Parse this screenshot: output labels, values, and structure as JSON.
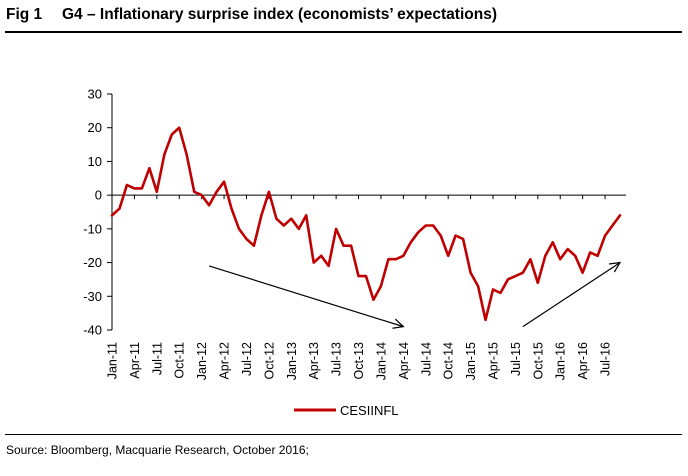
{
  "header": {
    "fig_label": "Fig 1",
    "title": "G4 – Inflationary surprise index (economists’ expectations)"
  },
  "source": "Source: Bloomberg, Macquarie Research, October  2016;",
  "chart_data": {
    "type": "line",
    "title": "G4 – Inflationary surprise index (economists’ expectations)",
    "xlabel": "",
    "ylabel": "",
    "ylim": [
      -40,
      30
    ],
    "yticks": [
      30,
      20,
      10,
      0,
      -10,
      -20,
      -30,
      -40
    ],
    "grid": false,
    "legend_position": "bottom-center",
    "x_tick_labels": [
      "Jan-11",
      "Apr-11",
      "Jul-11",
      "Oct-11",
      "Jan-12",
      "Apr-12",
      "Jul-12",
      "Oct-12",
      "Jan-13",
      "Apr-13",
      "Jul-13",
      "Oct-13",
      "Jan-14",
      "Apr-14",
      "Jul-14",
      "Oct-14",
      "Jan-15",
      "Apr-15",
      "Jul-15",
      "Oct-15",
      "Jan-16",
      "Apr-16",
      "Jul-16"
    ],
    "series_color": "#c00000",
    "arrow_color": "#000000",
    "series": [
      {
        "name": "CESIINFL",
        "x": [
          "Jan-11",
          "Feb-11",
          "Mar-11",
          "Apr-11",
          "May-11",
          "Jun-11",
          "Jul-11",
          "Aug-11",
          "Sep-11",
          "Oct-11",
          "Nov-11",
          "Dec-11",
          "Jan-12",
          "Feb-12",
          "Mar-12",
          "Apr-12",
          "May-12",
          "Jun-12",
          "Jul-12",
          "Aug-12",
          "Sep-12",
          "Oct-12",
          "Nov-12",
          "Dec-12",
          "Jan-13",
          "Feb-13",
          "Mar-13",
          "Apr-13",
          "May-13",
          "Jun-13",
          "Jul-13",
          "Aug-13",
          "Sep-13",
          "Oct-13",
          "Nov-13",
          "Dec-13",
          "Jan-14",
          "Feb-14",
          "Mar-14",
          "Apr-14",
          "May-14",
          "Jun-14",
          "Jul-14",
          "Aug-14",
          "Sep-14",
          "Oct-14",
          "Nov-14",
          "Dec-14",
          "Jan-15",
          "Feb-15",
          "Mar-15",
          "Apr-15",
          "May-15",
          "Jun-15",
          "Jul-15",
          "Aug-15",
          "Sep-15",
          "Oct-15",
          "Nov-15",
          "Dec-15",
          "Jan-16",
          "Feb-16",
          "Mar-16",
          "Apr-16",
          "May-16",
          "Jun-16",
          "Jul-16",
          "Aug-16",
          "Sep-16"
        ],
        "values": [
          -6,
          -4,
          3,
          2,
          2,
          8,
          1,
          12,
          18,
          20,
          12,
          1,
          0,
          -3,
          1,
          4,
          -4,
          -10,
          -13,
          -15,
          -6,
          1,
          -7,
          -9,
          -7,
          -10,
          -6,
          -20,
          -18,
          -21,
          -10,
          -15,
          -15,
          -24,
          -24,
          -31,
          -27,
          -19,
          -19,
          -18,
          -14,
          -11,
          -9,
          -9,
          -12,
          -18,
          -12,
          -13,
          -23,
          -27,
          -37,
          -28,
          -29,
          -25,
          -24,
          -23,
          -19,
          -26,
          -18,
          -14,
          -19,
          -16,
          -18,
          -23,
          -17,
          -18,
          -12,
          -9,
          -6
        ]
      }
    ],
    "annotations": [
      {
        "type": "arrow",
        "from": [
          "Feb-12",
          -21
        ],
        "to": [
          "Apr-14",
          -39
        ]
      },
      {
        "type": "arrow",
        "from": [
          "Aug-15",
          -39
        ],
        "to": [
          "Sep-16",
          -20
        ]
      }
    ]
  }
}
